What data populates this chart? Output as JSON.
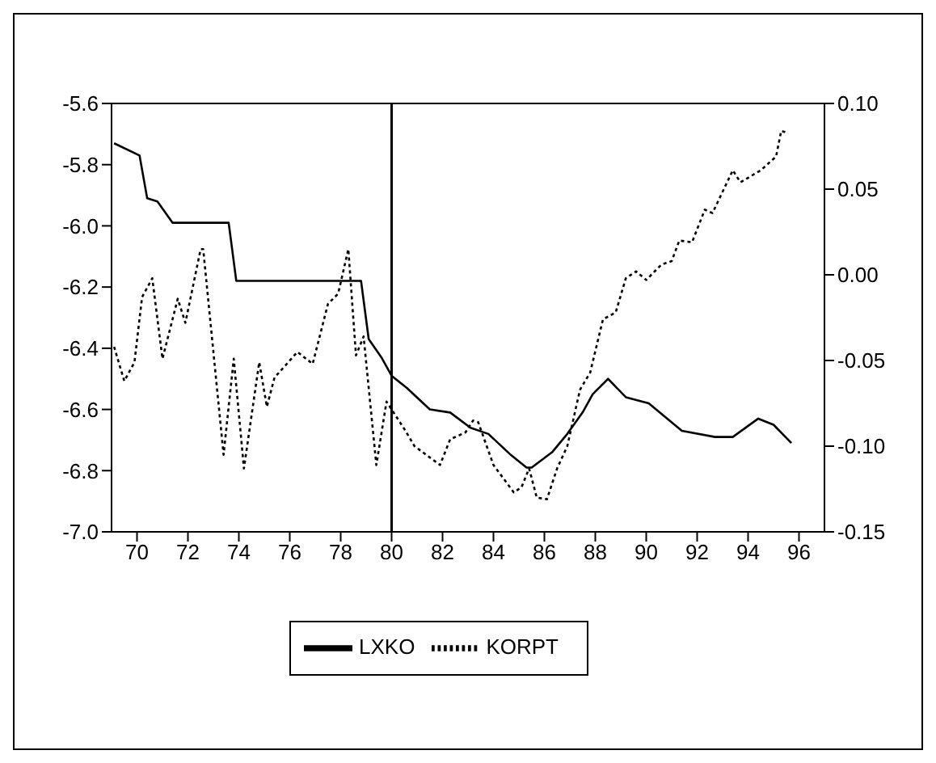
{
  "chart_data": {
    "type": "line",
    "xlim": [
      1969,
      1997
    ],
    "xticks": [
      {
        "value": 1970,
        "label": "70"
      },
      {
        "value": 1972,
        "label": "72"
      },
      {
        "value": 1974,
        "label": "74"
      },
      {
        "value": 1976,
        "label": "76"
      },
      {
        "value": 1978,
        "label": "78"
      },
      {
        "value": 1980,
        "label": "80"
      },
      {
        "value": 1982,
        "label": "82"
      },
      {
        "value": 1984,
        "label": "84"
      },
      {
        "value": 1986,
        "label": "86"
      },
      {
        "value": 1988,
        "label": "88"
      },
      {
        "value": 1990,
        "label": "90"
      },
      {
        "value": 1992,
        "label": "92"
      },
      {
        "value": 1994,
        "label": "94"
      },
      {
        "value": 1996,
        "label": "96"
      }
    ],
    "ylim": [
      -7.0,
      -5.6
    ],
    "yticks": [
      {
        "value": -7.0,
        "label": "-7.0"
      },
      {
        "value": -6.8,
        "label": "-6.8"
      },
      {
        "value": -6.6,
        "label": "-6.6"
      },
      {
        "value": -6.4,
        "label": "-6.4"
      },
      {
        "value": -6.2,
        "label": "-6.2"
      },
      {
        "value": -6.0,
        "label": "-6.0"
      },
      {
        "value": -5.8,
        "label": "-5.8"
      },
      {
        "value": -5.6,
        "label": "-5.6"
      }
    ],
    "y2lim": [
      -0.15,
      0.1
    ],
    "y2ticks": [
      {
        "value": -0.15,
        "label": "-0.15"
      },
      {
        "value": -0.1,
        "label": "-0.10"
      },
      {
        "value": -0.05,
        "label": "-0.05"
      },
      {
        "value": 0,
        "label": "0.00"
      },
      {
        "value": 0.05,
        "label": "0.05"
      },
      {
        "value": 0.1,
        "label": "0.10"
      }
    ],
    "ref_lines": [
      {
        "axis": "x",
        "value": 1980,
        "color": "#000000"
      }
    ],
    "legend": "bottom",
    "grid": false,
    "series": [
      {
        "name": "LXKO",
        "color": "#000000",
        "line_style": "solid",
        "x": [
          1969.1,
          1970.1,
          1970.4,
          1970.8,
          1971.4,
          1973.6,
          1973.9,
          1978.8,
          1979.1,
          1979.6,
          1980.0,
          1980.6,
          1981.5,
          1982.3,
          1983.1,
          1983.8,
          1984.7,
          1985.3,
          1985.5,
          1986.3,
          1986.9,
          1987.5,
          1987.9,
          1988.5,
          1989.2,
          1990.1,
          1991.4,
          1992.7,
          1993.4,
          1994.4,
          1995.0,
          1995.7
        ],
        "values": [
          -5.73,
          -5.77,
          -5.91,
          -5.92,
          -5.99,
          -5.99,
          -6.18,
          -6.18,
          -6.37,
          -6.43,
          -6.49,
          -6.53,
          -6.6,
          -6.61,
          -6.66,
          -6.68,
          -6.75,
          -6.79,
          -6.79,
          -6.74,
          -6.68,
          -6.61,
          -6.55,
          -6.5,
          -6.56,
          -6.58,
          -6.67,
          -6.69,
          -6.69,
          -6.63,
          -6.65,
          -6.71
        ]
      },
      {
        "name": "KORPT",
        "color": "#000000",
        "line_style": "dotted",
        "axis": "y2",
        "x": [
          1969.1,
          1969.5,
          1969.9,
          1970.2,
          1970.6,
          1971.0,
          1971.6,
          1971.9,
          1972.5,
          1972.6,
          1973.4,
          1973.8,
          1974.2,
          1974.8,
          1975.1,
          1975.4,
          1976.3,
          1976.9,
          1977.5,
          1977.9,
          1978.3,
          1978.6,
          1978.9,
          1979.4,
          1979.8,
          1980.5,
          1980.9,
          1981.9,
          1982.3,
          1982.9,
          1983.2,
          1983.4,
          1984.0,
          1984.8,
          1985.1,
          1985.4,
          1985.7,
          1986.1,
          1986.5,
          1986.9,
          1987.4,
          1987.8,
          1988.3,
          1988.8,
          1989.2,
          1989.6,
          1990.0,
          1990.6,
          1991.0,
          1991.3,
          1991.8,
          1992.3,
          1992.6,
          1993.4,
          1993.7,
          1994.5,
          1995.1,
          1995.3,
          1995.5
        ],
        "values": [
          -0.042,
          -0.062,
          -0.051,
          -0.013,
          -0.002,
          -0.049,
          -0.014,
          -0.028,
          0.015,
          0.015,
          -0.105,
          -0.049,
          -0.113,
          -0.051,
          -0.077,
          -0.06,
          -0.045,
          -0.052,
          -0.017,
          -0.011,
          0.015,
          -0.047,
          -0.036,
          -0.111,
          -0.074,
          -0.09,
          -0.1,
          -0.111,
          -0.096,
          -0.092,
          -0.085,
          -0.086,
          -0.111,
          -0.127,
          -0.124,
          -0.113,
          -0.13,
          -0.131,
          -0.113,
          -0.1,
          -0.067,
          -0.057,
          -0.026,
          -0.022,
          -0.002,
          0.002,
          -0.003,
          0.006,
          0.008,
          0.02,
          0.019,
          0.038,
          0.036,
          0.061,
          0.054,
          0.061,
          0.069,
          0.084,
          0.083
        ]
      }
    ]
  }
}
